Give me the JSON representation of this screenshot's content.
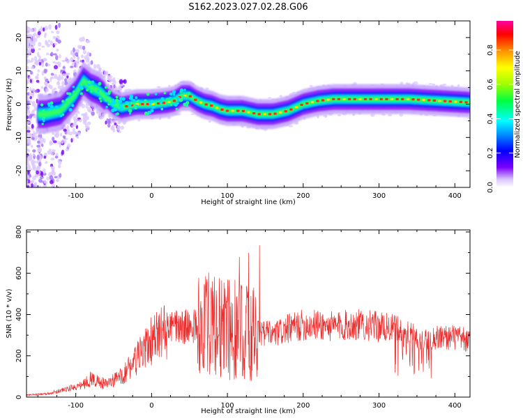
{
  "figure": {
    "title": "S162.2023.027.02.28.G06"
  },
  "chart_data": [
    {
      "type": "heatmap",
      "xlabel": "Height of straight line (km)",
      "ylabel": "Frequency (Hz)",
      "xlim": [
        -165,
        420
      ],
      "ylim": [
        -25,
        25
      ],
      "xticks": [
        -100,
        0,
        100,
        200,
        300,
        400
      ],
      "yticks": [
        -20,
        -10,
        0,
        10,
        20
      ],
      "ridge": {
        "description_of_values": "peak-frequency ridge (Hz) vs height (km)",
        "x": [
          -140,
          -120,
          -100,
          -90,
          -80,
          -70,
          -60,
          -50,
          -40,
          -20,
          0,
          20,
          30,
          40,
          50,
          60,
          70,
          80,
          90,
          100,
          120,
          140,
          160,
          180,
          200,
          220,
          240,
          260,
          300,
          340,
          380,
          420
        ],
        "y": [
          -3,
          -2,
          3,
          7,
          5,
          4,
          2,
          0,
          -1,
          0,
          0,
          0.5,
          1,
          2.5,
          2.5,
          1,
          0,
          -0.5,
          -1.5,
          -2,
          -2,
          -3,
          -3,
          -2,
          0,
          1,
          1.5,
          1.5,
          1.5,
          1.5,
          1,
          0.5
        ]
      },
      "colorbar": {
        "label": "Normalized spectral amplitude",
        "ticks": [
          "0.0",
          "0.2",
          "0.4",
          "0.6",
          "0.8"
        ],
        "range": [
          0,
          0.97
        ]
      }
    },
    {
      "type": "line",
      "xlabel": "Height of straight line (km)",
      "ylabel": "SNR (10 * v/v)",
      "xlim": [
        -165,
        420
      ],
      "ylim": [
        0,
        810
      ],
      "xticks": [
        -100,
        0,
        100,
        200,
        300,
        400
      ],
      "yticks": [
        0,
        200,
        400,
        600,
        800
      ],
      "series": [
        {
          "color": "#ee2b2b",
          "x": [
            -165,
            -140,
            -110,
            -90,
            -80,
            -60,
            -40,
            -20,
            0,
            20,
            40,
            60,
            80,
            100,
            120,
            140,
            160,
            180,
            200,
            220,
            240,
            260,
            280,
            300,
            320,
            340,
            360,
            380,
            400,
            420
          ],
          "y": [
            10,
            15,
            40,
            60,
            90,
            60,
            100,
            180,
            270,
            330,
            340,
            345,
            350,
            330,
            320,
            310,
            300,
            330,
            350,
            350,
            340,
            350,
            350,
            340,
            330,
            300,
            280,
            290,
            290,
            270
          ]
        }
      ]
    }
  ]
}
